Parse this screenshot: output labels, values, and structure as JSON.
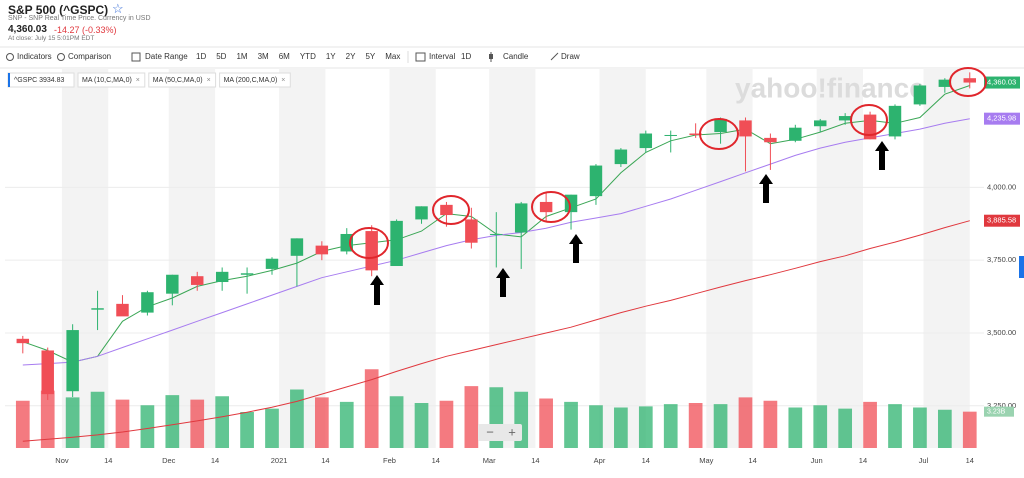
{
  "header": {
    "title": "S&P 500 (^GSPC)",
    "subtitle": "SNP - SNP Real Time Price. Currency in USD",
    "price": "4,360.03",
    "change": "-14.27 (-0.33%)",
    "time": "At close: July 15 5:01PM EDT"
  },
  "toolbar": {
    "indicators": "Indicators",
    "comparison": "Comparison",
    "date_range": "Date Range",
    "ranges": [
      "1D",
      "5D",
      "1M",
      "3M",
      "6M",
      "YTD",
      "1Y",
      "2Y",
      "5Y",
      "Max"
    ],
    "interval": "Interval",
    "interval_value": "1D",
    "candle": "Candle",
    "draw": "Draw"
  },
  "watermark": "yahoo!finance",
  "zoom": [
    "−",
    "+"
  ],
  "chart_data": {
    "type": "candlestick",
    "legend_label": "^GSPC 3934.83",
    "price_tag": "4,360.03",
    "volume_tag": "3.23B",
    "up_color": "#2db36f",
    "down_color": "#f04e56",
    "grid": true,
    "x": [
      2,
      9,
      16,
      23,
      30,
      37,
      44,
      51,
      58,
      65,
      72,
      79,
      86,
      93,
      100,
      107,
      114,
      121,
      128,
      135,
      142,
      149,
      156,
      163,
      170,
      177,
      184,
      191,
      198,
      205,
      212,
      219,
      226,
      233,
      240,
      247,
      254,
      261,
      268
    ],
    "open": [
      3480,
      3440,
      3300,
      3580,
      3600,
      3570,
      3635,
      3695,
      3675,
      3700,
      3720,
      3765,
      3800,
      3780,
      3850,
      3730,
      3890,
      3940,
      3890,
      3840,
      3845,
      3950,
      3915,
      3970,
      4080,
      4135,
      4180,
      4185,
      4190,
      4230,
      4170,
      4160,
      4210,
      4230,
      4250,
      4175,
      4285,
      4345,
      4375
    ],
    "high": [
      3490,
      3450,
      3530,
      3645,
      3630,
      3645,
      3700,
      3710,
      3725,
      3725,
      3760,
      3825,
      3815,
      3860,
      3870,
      3890,
      3935,
      3950,
      3930,
      3915,
      3950,
      3985,
      3975,
      4080,
      4135,
      4195,
      4195,
      4220,
      4240,
      4240,
      4185,
      4215,
      4235,
      4255,
      4260,
      4285,
      4355,
      4375,
      4395
    ],
    "low": [
      3430,
      3270,
      3280,
      3510,
      3570,
      3560,
      3595,
      3645,
      3645,
      3635,
      3700,
      3660,
      3750,
      3770,
      3695,
      3730,
      3875,
      3865,
      3790,
      3725,
      3720,
      3880,
      3855,
      3940,
      4070,
      4120,
      4120,
      4170,
      4150,
      4055,
      4060,
      4155,
      4190,
      4215,
      4165,
      4165,
      4280,
      4325,
      4340
    ],
    "close": [
      3465,
      3290,
      3510,
      3585,
      3557,
      3640,
      3700,
      3665,
      3710,
      3705,
      3755,
      3825,
      3770,
      3840,
      3715,
      3885,
      3935,
      3905,
      3810,
      3840,
      3945,
      3915,
      3975,
      4075,
      4130,
      4185,
      4180,
      4180,
      4235,
      4175,
      4155,
      4205,
      4230,
      4245,
      4165,
      4280,
      4350,
      4370,
      4360.03
    ],
    "volume": [
      4.2,
      5.1,
      4.5,
      5.0,
      4.3,
      3.8,
      4.7,
      4.3,
      4.6,
      3.2,
      3.5,
      5.2,
      4.5,
      4.1,
      7.0,
      4.6,
      4.0,
      4.2,
      5.5,
      5.4,
      5.0,
      4.4,
      4.1,
      3.8,
      3.6,
      3.7,
      3.9,
      4.0,
      3.9,
      4.5,
      4.2,
      3.6,
      3.8,
      3.5,
      4.1,
      3.9,
      3.6,
      3.4,
      3.23
    ],
    "volume_lim": [
      0,
      8
    ],
    "series": [
      {
        "name": "MA (10,C,MA,0)",
        "color": "#3aa655",
        "values": [
          3470,
          3440,
          3400,
          3420,
          3540,
          3590,
          3620,
          3660,
          3680,
          3695,
          3715,
          3740,
          3780,
          3800,
          3810,
          3820,
          3850,
          3910,
          3900,
          3840,
          3830,
          3900,
          3930,
          3960,
          4050,
          4120,
          4160,
          4180,
          4185,
          4200,
          4150,
          4165,
          4190,
          4220,
          4230,
          4220,
          4240,
          4320,
          4350
        ]
      },
      {
        "name": "MA (50,C,MA,0)",
        "color": "#a77cf0",
        "last_label": "4,235.98",
        "values": [
          3390,
          3395,
          3400,
          3420,
          3450,
          3480,
          3510,
          3540,
          3570,
          3600,
          3630,
          3660,
          3690,
          3710,
          3730,
          3750,
          3775,
          3800,
          3820,
          3835,
          3845,
          3860,
          3880,
          3895,
          3910,
          3935,
          3960,
          3990,
          4020,
          4050,
          4080,
          4110,
          4135,
          4155,
          4170,
          4185,
          4200,
          4220,
          4235.98
        ]
      },
      {
        "name": "MA (200,C,MA,0)",
        "color": "#e0383e",
        "last_label": "3,885.58",
        "values": [
          3128,
          3135,
          3142,
          3150,
          3160,
          3172,
          3185,
          3198,
          3212,
          3228,
          3245,
          3265,
          3290,
          3315,
          3340,
          3368,
          3395,
          3420,
          3440,
          3460,
          3480,
          3500,
          3520,
          3545,
          3570,
          3592,
          3612,
          3635,
          3658,
          3680,
          3700,
          3722,
          3745,
          3765,
          3790,
          3812,
          3836,
          3862,
          3885.58
        ]
      }
    ],
    "xlim": [
      -3,
      272
    ],
    "xticks": [
      {
        "value": 13,
        "label": "Nov"
      },
      26,
      {
        "value": 43,
        "label": "Dec"
      },
      56,
      {
        "value": 74,
        "label": "2021"
      },
      87,
      {
        "value": 105,
        "label": "Feb"
      },
      118,
      {
        "value": 133,
        "label": "Mar"
      },
      146,
      {
        "value": 164,
        "label": "Apr"
      },
      177,
      {
        "value": 194,
        "label": "May"
      },
      207,
      {
        "value": 225,
        "label": "Jun"
      },
      238,
      {
        "value": 255,
        "label": "Jul"
      },
      268
    ],
    "xtick_day_labels": [
      "14",
      "14",
      "14",
      "14",
      "14",
      "14",
      "14",
      "14",
      "14"
    ],
    "ylim": [
      3105,
      4410
    ],
    "yticks": [
      {
        "value": 3250,
        "label": "3,250.00"
      },
      {
        "value": 3500,
        "label": "3,500.00"
      },
      {
        "value": 3750,
        "label": "3,750.00"
      },
      {
        "value": 4000,
        "label": "4,000.00"
      }
    ]
  }
}
